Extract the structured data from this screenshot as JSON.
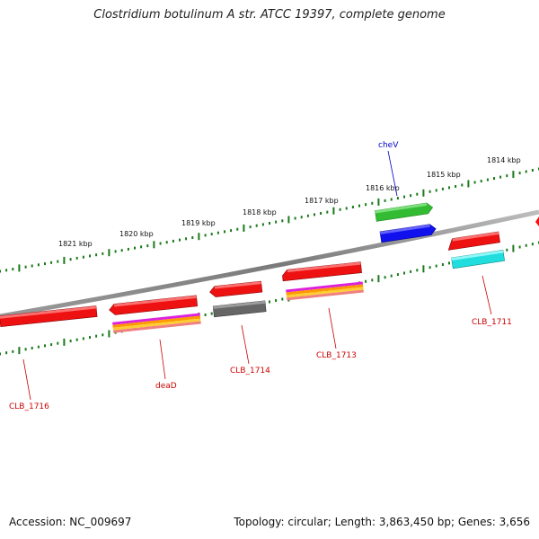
{
  "title": "Clostridium botulinum A str. ATCC 19397, complete genome",
  "footer": {
    "accession": "Accession: NC_009697",
    "summary": "Topology: circular; Length: 3,863,450 bp; Genes: 3,656"
  },
  "kbp_labels": [
    "1821 kbp",
    "1820 kbp",
    "1819 kbp",
    "1818 kbp",
    "1817 kbp",
    "1816 kbp",
    "1815 kbp",
    "1814 kbp"
  ],
  "gene_labels": [
    {
      "name": "CLB_1716",
      "color": "#cc0000"
    },
    {
      "name": "deaD",
      "color": "#cc0000"
    },
    {
      "name": "CLB_1714",
      "color": "#cc0000"
    },
    {
      "name": "CLB_1713",
      "color": "#cc0000"
    },
    {
      "name": "CLB_1711",
      "color": "#cc0000"
    },
    {
      "name": "cheV",
      "color": "#0000cc"
    }
  ],
  "colors": {
    "backbone": "#8a8a8a",
    "ticks": "#1a7a1a",
    "gene_red": "#ee1111",
    "gene_green": "#33bb33",
    "gene_blue": "#1111ee",
    "gene_cyan": "#22dddd",
    "gene_gray": "#666666",
    "cog_magenta": "#dd22dd",
    "cog_orange": "#ff9900",
    "cog_salmon": "#f08080"
  }
}
